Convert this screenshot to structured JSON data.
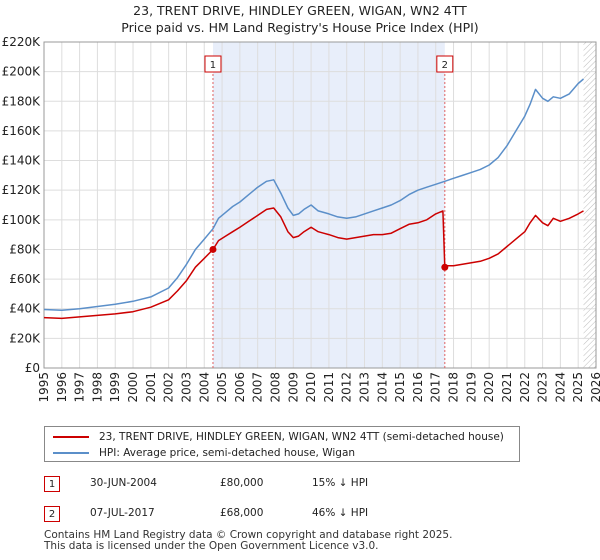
{
  "chart_data": {
    "type": "line",
    "title": "23, TRENT DRIVE, HINDLEY GREEN, WIGAN, WN2 4TT",
    "subtitle": "Price paid vs. HM Land Registry's House Price Index (HPI)",
    "xlim": [
      1995,
      2026
    ],
    "ylim": [
      0,
      220000
    ],
    "grid": true,
    "x_ticks": [
      "1995",
      "1996",
      "1997",
      "1998",
      "1999",
      "2000",
      "2001",
      "2002",
      "2003",
      "2004",
      "2005",
      "2006",
      "2007",
      "2008",
      "2009",
      "2010",
      "2011",
      "2012",
      "2013",
      "2014",
      "2015",
      "2016",
      "2017",
      "2018",
      "2019",
      "2020",
      "2021",
      "2022",
      "2023",
      "2024",
      "2025",
      "2026"
    ],
    "y_ticks": [
      "£0",
      "£20K",
      "£40K",
      "£60K",
      "£80K",
      "£100K",
      "£120K",
      "£140K",
      "£160K",
      "£180K",
      "£200K",
      "£220K"
    ],
    "series": [
      {
        "name": "23, TRENT DRIVE, HINDLEY GREEN, WIGAN, WN2 4TT (semi-detached house)",
        "color": "#cc0000",
        "x": [
          1995.0,
          1996.0,
          1997.0,
          1998.0,
          1999.0,
          2000.0,
          2001.0,
          2002.0,
          2002.5,
          2003.0,
          2003.5,
          2004.0,
          2004.49,
          2004.8,
          2005.2,
          2005.6,
          2006.0,
          2006.5,
          2007.0,
          2007.5,
          2007.9,
          2008.3,
          2008.7,
          2009.0,
          2009.3,
          2009.6,
          2010.0,
          2010.4,
          2010.7,
          2011.0,
          2011.5,
          2012.0,
          2012.5,
          2013.0,
          2013.5,
          2014.0,
          2014.5,
          2015.0,
          2015.5,
          2016.0,
          2016.5,
          2017.0,
          2017.4,
          2017.51,
          2017.6,
          2018.0,
          2018.5,
          2019.0,
          2019.5,
          2020.0,
          2020.5,
          2021.0,
          2021.5,
          2022.0,
          2022.3,
          2022.6,
          2023.0,
          2023.3,
          2023.6,
          2024.0,
          2024.5,
          2025.0,
          2025.3
        ],
        "y": [
          34000,
          33500,
          34500,
          35500,
          36500,
          38000,
          41000,
          46000,
          52000,
          59000,
          68000,
          74000,
          80000,
          86000,
          89000,
          92000,
          95000,
          99000,
          103000,
          107000,
          108000,
          102000,
          92000,
          88000,
          89000,
          92000,
          95000,
          92000,
          91000,
          90000,
          88000,
          87000,
          88000,
          89000,
          90000,
          90000,
          91000,
          94000,
          97000,
          98000,
          100000,
          104000,
          106000,
          68000,
          69000,
          69000,
          70000,
          71000,
          72000,
          74000,
          77000,
          82000,
          87000,
          92000,
          98000,
          103000,
          98000,
          96000,
          101000,
          99000,
          101000,
          104000,
          106000
        ]
      },
      {
        "name": "HPI: Average price, semi-detached house, Wigan",
        "color": "#5b8fc9",
        "x": [
          1995.0,
          1996.0,
          1997.0,
          1998.0,
          1999.0,
          2000.0,
          2001.0,
          2002.0,
          2002.5,
          2003.0,
          2003.5,
          2004.0,
          2004.49,
          2004.8,
          2005.2,
          2005.6,
          2006.0,
          2006.5,
          2007.0,
          2007.5,
          2007.9,
          2008.3,
          2008.7,
          2009.0,
          2009.3,
          2009.6,
          2010.0,
          2010.4,
          2010.7,
          2011.0,
          2011.5,
          2012.0,
          2012.5,
          2013.0,
          2013.5,
          2014.0,
          2014.5,
          2015.0,
          2015.5,
          2016.0,
          2016.5,
          2017.0,
          2017.51,
          2018.0,
          2018.5,
          2019.0,
          2019.5,
          2020.0,
          2020.5,
          2021.0,
          2021.5,
          2022.0,
          2022.3,
          2022.6,
          2023.0,
          2023.3,
          2023.6,
          2024.0,
          2024.5,
          2025.0,
          2025.3
        ],
        "y": [
          39500,
          39000,
          40000,
          41500,
          43000,
          45000,
          48000,
          54000,
          61000,
          70000,
          80000,
          87000,
          94000,
          101000,
          105000,
          109000,
          112000,
          117000,
          122000,
          126000,
          127000,
          118000,
          108000,
          103000,
          104000,
          107000,
          110000,
          106000,
          105000,
          104000,
          102000,
          101000,
          102000,
          104000,
          106000,
          108000,
          110000,
          113000,
          117000,
          120000,
          122000,
          124000,
          126000,
          128000,
          130000,
          132000,
          134000,
          137000,
          142000,
          150000,
          160000,
          170000,
          178000,
          188000,
          182000,
          180000,
          183000,
          182000,
          185000,
          192000,
          195000
        ]
      }
    ],
    "sales": [
      {
        "label": "1",
        "x": 2004.49,
        "y": 80000
      },
      {
        "label": "2",
        "x": 2017.51,
        "y": 68000
      }
    ],
    "band": [
      2004.49,
      2017.51
    ],
    "forecast_from": 2025.3
  },
  "legend": {
    "property": "23, TRENT DRIVE, HINDLEY GREEN, WIGAN, WN2 4TT (semi-detached house)",
    "hpi": "HPI: Average price, semi-detached house, Wigan"
  },
  "transactions": [
    {
      "num": "1",
      "date": "30-JUN-2004",
      "price": "£80,000",
      "hpi": "15% ↓ HPI"
    },
    {
      "num": "2",
      "date": "07-JUL-2017",
      "price": "£68,000",
      "hpi": "46% ↓ HPI"
    }
  ],
  "footer": {
    "line1": "Contains HM Land Registry data © Crown copyright and database right 2025.",
    "line2": "This data is licensed under the Open Government Licence v3.0."
  }
}
